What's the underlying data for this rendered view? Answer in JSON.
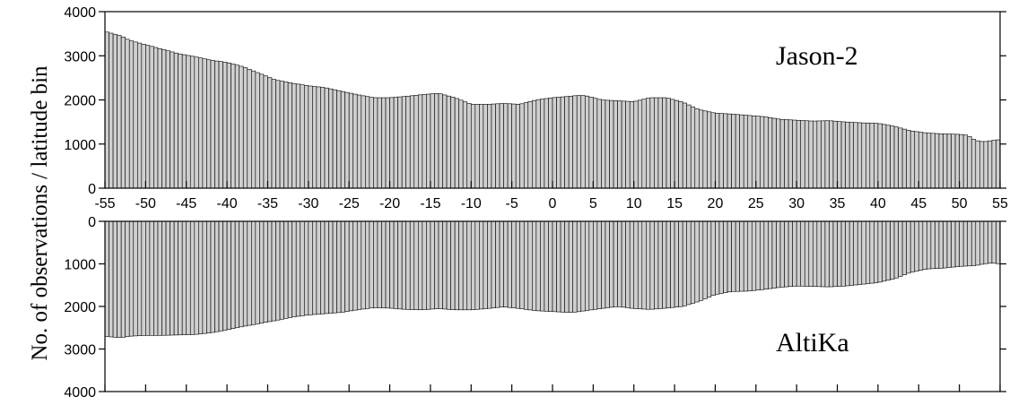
{
  "chart_data": {
    "type": "bar",
    "ylabel": "No. of observations / latitude bin",
    "x_tick_labels": [
      "-55",
      "-50",
      "-45",
      "-40",
      "-35",
      "-30",
      "-25",
      "-20",
      "-15",
      "-10",
      "-5",
      "0",
      "5",
      "10",
      "15",
      "20",
      "25",
      "30",
      "35",
      "40",
      "45",
      "50",
      "55"
    ],
    "x_tick_values": [
      -55,
      -50,
      -45,
      -40,
      -35,
      -30,
      -25,
      -20,
      -15,
      -10,
      -5,
      0,
      5,
      10,
      15,
      20,
      25,
      30,
      35,
      40,
      45,
      50,
      55
    ],
    "xlim": [
      -55,
      55
    ],
    "bin_width": 0.5,
    "x_knots": [
      -55,
      -54,
      -53,
      -52,
      -50,
      -48,
      -46,
      -44,
      -42,
      -40,
      -38,
      -36,
      -34,
      -32,
      -30,
      -28,
      -26,
      -24,
      -22,
      -20,
      -18,
      -16,
      -14,
      -12,
      -10,
      -8,
      -6,
      -4,
      -2,
      0,
      2,
      3,
      4,
      6,
      8,
      10,
      12,
      14,
      16,
      18,
      20,
      22,
      24,
      26,
      28,
      30,
      32,
      34,
      36,
      38,
      40,
      42,
      44,
      46,
      48,
      50,
      51,
      52,
      53,
      54,
      55
    ],
    "panels": [
      {
        "name": "Jason-2",
        "ylim": [
          0,
          4000
        ],
        "y_tick_labels": [
          "0",
          "1000",
          "2000",
          "3000",
          "4000"
        ],
        "y_tick_values": [
          0,
          1000,
          2000,
          3000,
          4000
        ],
        "y_axis_side": "left-and-right",
        "inverted": false,
        "values_at_knots": [
          3550,
          3500,
          3450,
          3350,
          3250,
          3150,
          3050,
          2980,
          2900,
          2850,
          2750,
          2600,
          2450,
          2380,
          2320,
          2280,
          2200,
          2120,
          2050,
          2050,
          2080,
          2120,
          2150,
          2050,
          1900,
          1900,
          1920,
          1900,
          2000,
          2050,
          2080,
          2100,
          2100,
          2000,
          1980,
          1960,
          2050,
          2050,
          1950,
          1780,
          1700,
          1680,
          1650,
          1620,
          1560,
          1540,
          1520,
          1530,
          1500,
          1480,
          1470,
          1400,
          1300,
          1250,
          1230,
          1220,
          1200,
          1080,
          1050,
          1080,
          1100
        ]
      },
      {
        "name": "AltiKa",
        "ylim": [
          0,
          4000
        ],
        "y_tick_labels": [
          "0",
          "1000",
          "2000",
          "3000",
          "4000"
        ],
        "y_tick_values": [
          0,
          1000,
          2000,
          3000,
          4000
        ],
        "y_axis_side": "left-and-right",
        "inverted": true,
        "values_at_knots": [
          2700,
          2720,
          2730,
          2700,
          2680,
          2680,
          2670,
          2660,
          2620,
          2550,
          2470,
          2400,
          2330,
          2250,
          2200,
          2170,
          2140,
          2080,
          2030,
          2040,
          2070,
          2080,
          2050,
          2080,
          2080,
          2050,
          2010,
          2050,
          2100,
          2120,
          2140,
          2130,
          2100,
          2050,
          2000,
          2050,
          2070,
          2040,
          2000,
          1880,
          1720,
          1650,
          1640,
          1600,
          1550,
          1520,
          1530,
          1540,
          1520,
          1480,
          1440,
          1350,
          1200,
          1120,
          1100,
          1060,
          1050,
          1040,
          1000,
          980,
          1000
        ]
      }
    ]
  }
}
